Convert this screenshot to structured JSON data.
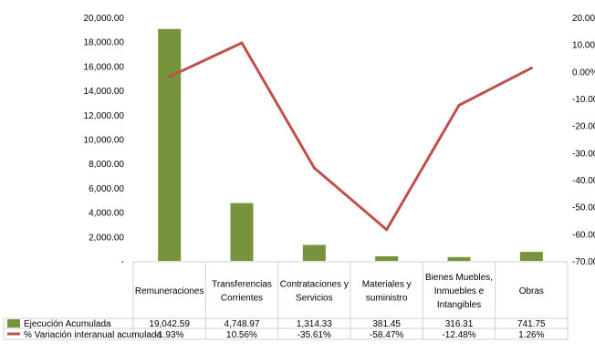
{
  "chart_data": {
    "type": "bar",
    "categories": [
      [
        "Remuneraciones"
      ],
      [
        "Transferencias",
        "Corrientes"
      ],
      [
        "Contrataciones y",
        "Servicios"
      ],
      [
        "Materiales y",
        "suministro"
      ],
      [
        "Bienes Muebles,",
        "Inmuebles e",
        "Intangibles"
      ],
      [
        "Obras"
      ]
    ],
    "series": [
      {
        "name": "Ejecución Acumulada",
        "type": "bar",
        "axis": "left",
        "color": "#77933c",
        "values": [
          19042.59,
          4748.97,
          1314.33,
          381.45,
          316.31,
          741.75
        ],
        "labels": [
          "19,042.59",
          "4,748.97",
          "1,314.33",
          "381.45",
          "316.31",
          "741.75"
        ]
      },
      {
        "name": "% Variación interanual acumulada",
        "type": "line",
        "axis": "right",
        "color": "#c0504d",
        "values": [
          -1.93,
          10.56,
          -35.61,
          -58.47,
          -12.48,
          1.26
        ],
        "labels": [
          "-1.93%",
          "10.56%",
          "-35.61%",
          "-58.47%",
          "-12.48%",
          "1.26%"
        ]
      }
    ],
    "left_axis": {
      "ylim": [
        0,
        20000
      ],
      "ticks": [
        "-",
        "2,000.00",
        "4,000.00",
        "6,000.00",
        "8,000.00",
        "10,000.00",
        "12,000.00",
        "14,000.00",
        "16,000.00",
        "18,000.00",
        "20,000.00"
      ]
    },
    "right_axis": {
      "ylim": [
        -70,
        20
      ],
      "ticks": [
        "-70.00%",
        "-60.00%",
        "-50.00%",
        "-40.00%",
        "-30.00%",
        "-20.00%",
        "-10.00%",
        "0.00%",
        "10.00%",
        "20.00%"
      ]
    },
    "grid": false,
    "legend": "data-table"
  }
}
